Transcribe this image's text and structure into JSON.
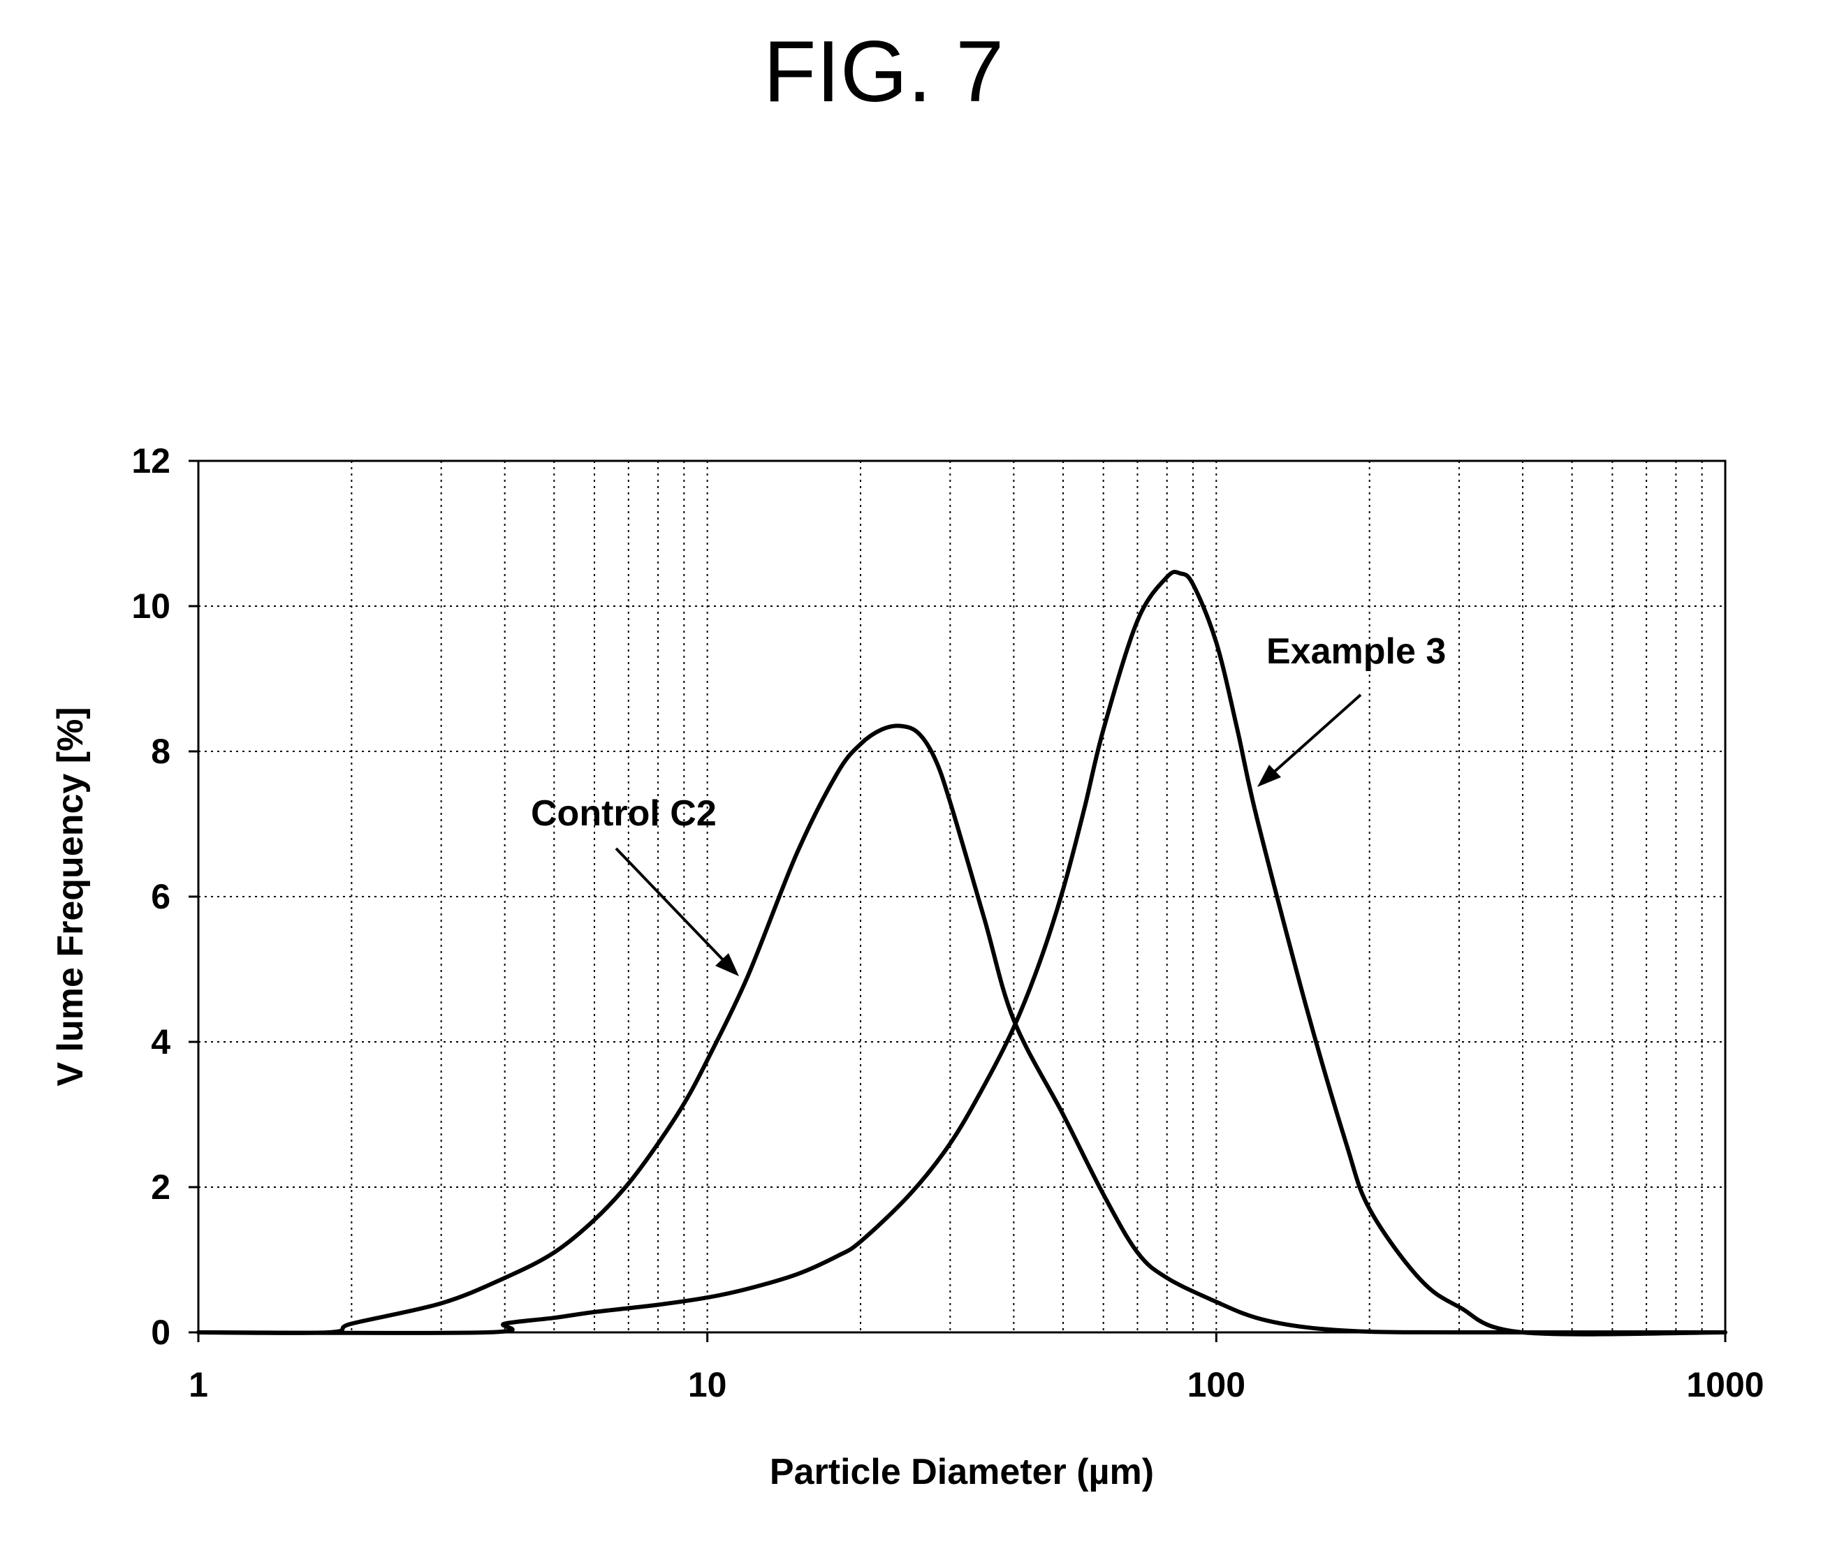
{
  "figure_label": "FIG. 7",
  "chart_data": {
    "type": "line",
    "xscale": "log",
    "xlim": [
      1,
      1000
    ],
    "ylim": [
      0,
      12
    ],
    "xlabel": "Particle Diameter (µm)",
    "ylabel": "V lume Frequency [%]",
    "x_ticks": [
      1,
      10,
      100,
      1000
    ],
    "x_tick_labels": [
      "1",
      "10",
      "100",
      "1000"
    ],
    "y_ticks": [
      0,
      2,
      4,
      6,
      8,
      10,
      12
    ],
    "y_tick_labels": [
      "0",
      "2",
      "4",
      "6",
      "8",
      "10",
      "12"
    ],
    "grid": true,
    "legend": "none",
    "series": [
      {
        "name": "Control C2",
        "x": [
          1,
          1.8,
          2,
          3,
          4,
          5,
          6,
          7,
          8,
          9,
          10,
          12,
          15,
          18,
          20,
          22,
          24,
          26,
          28,
          30,
          35,
          40,
          50,
          60,
          70,
          80,
          100,
          120,
          150,
          200,
          300,
          1000
        ],
        "y": [
          0,
          0,
          0.12,
          0.4,
          0.75,
          1.1,
          1.55,
          2.05,
          2.6,
          3.15,
          3.75,
          4.9,
          6.6,
          7.7,
          8.1,
          8.3,
          8.35,
          8.25,
          7.9,
          7.3,
          5.7,
          4.3,
          3.0,
          1.9,
          1.1,
          0.75,
          0.42,
          0.2,
          0.07,
          0.01,
          0,
          0
        ]
      },
      {
        "name": "Example 3",
        "x": [
          1,
          3.7,
          4,
          5,
          6,
          8,
          10,
          12,
          15,
          18,
          20,
          25,
          30,
          35,
          40,
          45,
          50,
          55,
          60,
          70,
          80,
          85,
          90,
          100,
          110,
          120,
          150,
          180,
          200,
          250,
          300,
          400,
          1000
        ],
        "y": [
          0,
          0,
          0.12,
          0.2,
          0.28,
          0.38,
          0.48,
          0.6,
          0.8,
          1.05,
          1.25,
          1.9,
          2.6,
          3.4,
          4.2,
          5.1,
          6.1,
          7.2,
          8.3,
          9.8,
          10.4,
          10.45,
          10.3,
          9.5,
          8.3,
          7.1,
          4.5,
          2.6,
          1.7,
          0.75,
          0.35,
          0,
          0
        ]
      }
    ],
    "annotations": [
      "Control C2",
      "Example 3"
    ]
  }
}
